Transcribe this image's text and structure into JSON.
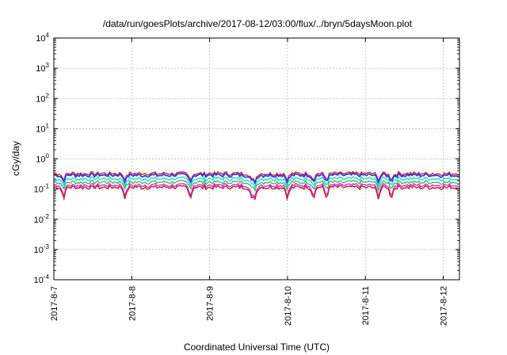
{
  "chart_data": {
    "type": "line",
    "title": "/data/run/goesPlots/archive/2017-08-12/03:00/flux/../bryn/5daysMoon.plot",
    "xlabel": "Coordinated Universal Time (UTC)",
    "ylabel": "cGy/day",
    "yscale": "log",
    "ylim": [
      0.0001,
      10000
    ],
    "xlim": [
      "2017-08-07",
      "2017-08-12 05:00"
    ],
    "grid": true,
    "y_ticks": [
      {
        "value": 0.0001,
        "base": "10",
        "exp": "-4"
      },
      {
        "value": 0.001,
        "base": "10",
        "exp": "-3"
      },
      {
        "value": 0.01,
        "base": "10",
        "exp": "-2"
      },
      {
        "value": 0.1,
        "base": "10",
        "exp": "-1"
      },
      {
        "value": 1,
        "base": "10",
        "exp": "0"
      },
      {
        "value": 10,
        "base": "10",
        "exp": "1"
      },
      {
        "value": 100,
        "base": "10",
        "exp": "2"
      },
      {
        "value": 1000,
        "base": "10",
        "exp": "3"
      },
      {
        "value": 10000,
        "base": "10",
        "exp": "4"
      }
    ],
    "x_ticks": [
      {
        "value": "2017-08-07",
        "label": "2017-8-7"
      },
      {
        "value": "2017-08-08",
        "label": "2017-8-8"
      },
      {
        "value": "2017-08-09",
        "label": "2017-8-9"
      },
      {
        "value": "2017-08-10",
        "label": "2017-8-10"
      },
      {
        "value": "2017-08-11",
        "label": "2017-8-11"
      },
      {
        "value": "2017-08-12",
        "label": "2017-8-12"
      }
    ],
    "series": [
      {
        "color": "#e8212c",
        "level": 0.33
      },
      {
        "color": "#2f3fd8",
        "level": 0.29
      },
      {
        "color": "#19d6e0",
        "level": 0.22
      },
      {
        "color": "#3cc24a",
        "level": 0.17
      },
      {
        "color": "#e81fe8",
        "level": 0.135
      },
      {
        "color": "#b0243a",
        "level": 0.115
      }
    ],
    "dips": [
      "2017-08-07 03:00",
      "2017-08-07 22:00",
      "2017-08-08 18:00",
      "2017-08-09 13:00",
      "2017-08-09 14:00",
      "2017-08-10 00:00",
      "2017-08-10 08:00",
      "2017-08-10 12:00",
      "2017-08-11 04:00",
      "2017-08-11 08:00"
    ]
  }
}
